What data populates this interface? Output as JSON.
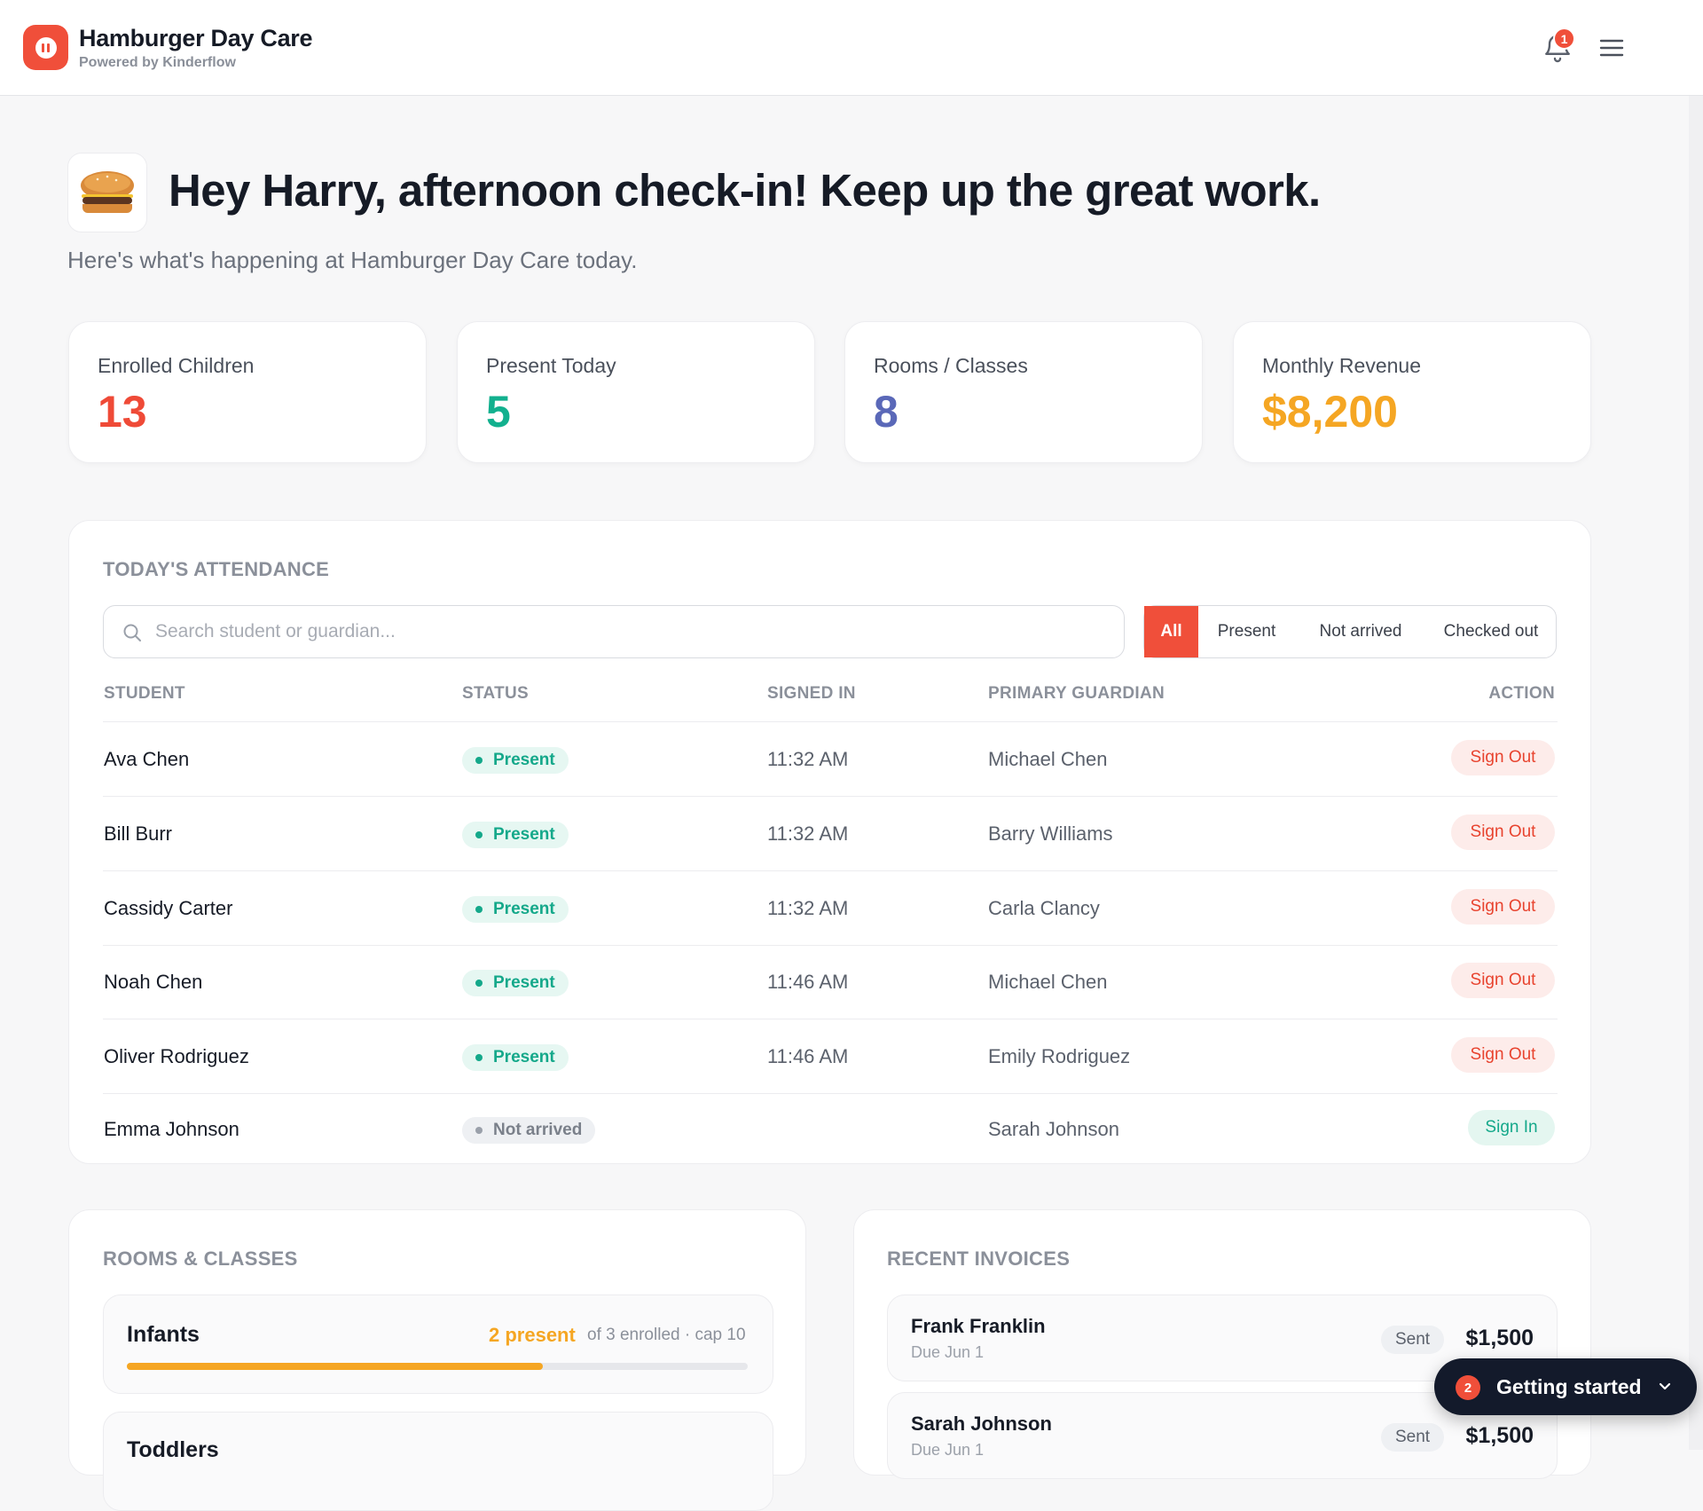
{
  "header": {
    "app_name": "Hamburger Day Care",
    "powered_by": "Powered by Kinderflow",
    "notification_count": "1",
    "icons": [
      "pause-logo-icon",
      "bell-icon",
      "hamburger-menu-icon"
    ]
  },
  "greeting": {
    "title": "Hey Harry, afternoon check-in! Keep up the great work.",
    "subtitle": "Here's what's happening at Hamburger Day Care today.",
    "avatar_icon": "hamburger-emoji-icon"
  },
  "stats": [
    {
      "label": "Enrolled Children",
      "value": "13",
      "color": "#ef4a37"
    },
    {
      "label": "Present Today",
      "value": "5",
      "color": "#12b08e"
    },
    {
      "label": "Rooms / Classes",
      "value": "8",
      "color": "#5a68b8"
    },
    {
      "label": "Monthly Revenue",
      "value": "$8,200",
      "color": "#f5a623"
    }
  ],
  "attendance": {
    "title": "TODAY'S ATTENDANCE",
    "search_placeholder": "Search student or guardian...",
    "filters": [
      "All",
      "Present",
      "Not arrived",
      "Checked out"
    ],
    "active_filter": "All",
    "columns": [
      "STUDENT",
      "STATUS",
      "SIGNED IN",
      "PRIMARY GUARDIAN",
      "ACTION"
    ],
    "rows": [
      {
        "student": "Ava Chen",
        "status": "Present",
        "signed_in": "11:32 AM",
        "guardian": "Michael Chen",
        "action": "Sign Out"
      },
      {
        "student": "Bill Burr",
        "status": "Present",
        "signed_in": "11:32 AM",
        "guardian": "Barry Williams",
        "action": "Sign Out"
      },
      {
        "student": "Cassidy Carter",
        "status": "Present",
        "signed_in": "11:32 AM",
        "guardian": "Carla Clancy",
        "action": "Sign Out"
      },
      {
        "student": "Noah Chen",
        "status": "Present",
        "signed_in": "11:46 AM",
        "guardian": "Michael Chen",
        "action": "Sign Out"
      },
      {
        "student": "Oliver Rodriguez",
        "status": "Present",
        "signed_in": "11:46 AM",
        "guardian": "Emily Rodriguez",
        "action": "Sign Out"
      },
      {
        "student": "Emma Johnson",
        "status": "Not arrived",
        "signed_in": "",
        "guardian": "Sarah Johnson",
        "action": "Sign In"
      }
    ]
  },
  "rooms": {
    "title": "ROOMS & CLASSES",
    "items": [
      {
        "name": "Infants",
        "present": "2 present",
        "meta": "of 3 enrolled · cap 10",
        "fill_fraction": 0.67
      },
      {
        "name": "Toddlers",
        "present": "",
        "meta": "",
        "fill_fraction": 0
      }
    ]
  },
  "invoices": {
    "title": "RECENT INVOICES",
    "items": [
      {
        "name": "Frank Franklin",
        "due": "Due Jun 1",
        "status": "Sent",
        "amount": "$1,500"
      },
      {
        "name": "Sarah Johnson",
        "due": "Due Jun 1",
        "status": "Sent",
        "amount": "$1,500"
      }
    ]
  },
  "getting_started": {
    "count": "2",
    "label": "Getting started",
    "icon": "chevron-down-icon"
  }
}
